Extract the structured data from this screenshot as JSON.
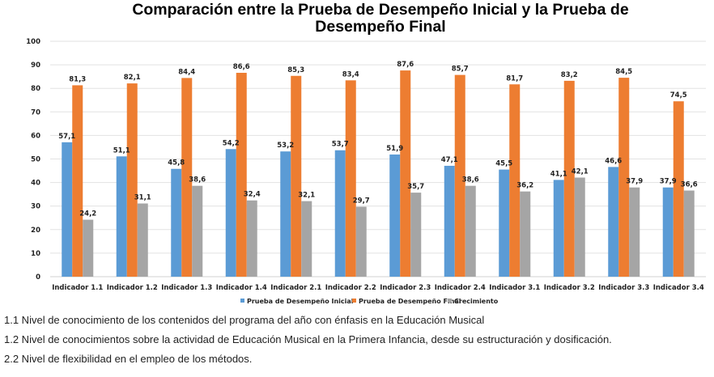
{
  "chart_data": {
    "type": "bar",
    "title": "Comparación entre la Prueba de Desempeño Inicial y la Prueba de Desempeño Final",
    "xlabel": "",
    "ylabel": "",
    "ylim": [
      0,
      100
    ],
    "yticks": [
      0,
      10,
      20,
      30,
      40,
      50,
      60,
      70,
      80,
      90,
      100
    ],
    "grid": true,
    "legend_position": "bottom",
    "categories": [
      "Indicador 1.1",
      "Indicador 1.2",
      "Indicador 1.3",
      "Indicador 1.4",
      "Indicador 2.1",
      "Indicador 2.2",
      "Indicador 2.3",
      "Indicador 2.4",
      "Indicador 3.1",
      "Indicador 3.2",
      "Indicador 3.3",
      "Indicador 3.4"
    ],
    "series": [
      {
        "name": "Prueba de Desempeño Inicial",
        "color": "#5B9BD5",
        "values": [
          57.1,
          51.1,
          45.8,
          54.2,
          53.2,
          53.7,
          51.9,
          47.1,
          45.5,
          41.1,
          46.6,
          37.9
        ],
        "labels": [
          "57,1",
          "51,1",
          "45,8",
          "54,2",
          "53,2",
          "53,7",
          "51,9",
          "47,1",
          "45,5",
          "41,1",
          "46,6",
          "37,9"
        ]
      },
      {
        "name": "Prueba de Desempeño Final",
        "color": "#ED7D31",
        "values": [
          81.3,
          82.1,
          84.4,
          86.6,
          85.3,
          83.4,
          87.6,
          85.7,
          81.7,
          83.2,
          84.5,
          74.5
        ],
        "labels": [
          "81,3",
          "82,1",
          "84,4",
          "86,6",
          "85,3",
          "83,4",
          "87,6",
          "85,7",
          "81,7",
          "83,2",
          "84,5",
          "74,5"
        ]
      },
      {
        "name": "Crecimiento",
        "color": "#A5A5A5",
        "values": [
          24.2,
          31.1,
          38.6,
          32.4,
          32.1,
          29.7,
          35.7,
          38.6,
          36.2,
          42.1,
          37.9,
          36.6
        ],
        "labels": [
          "24,2",
          "31,1",
          "38,6",
          "32,4",
          "32,1",
          "29,7",
          "35,7",
          "38,6",
          "36,2",
          "42,1",
          "37,9",
          "36,6"
        ]
      }
    ]
  },
  "notes": [
    "1.1 Nivel de conocimiento de los contenidos del programa del año con énfasis en la Educación Musical",
    "1.2 Nivel de conocimientos sobre la actividad de Educación Musical en la Primera Infancia, desde su estructuración y dosificación.",
    "2.2 Nivel de flexibilidad  en el empleo de los métodos."
  ]
}
